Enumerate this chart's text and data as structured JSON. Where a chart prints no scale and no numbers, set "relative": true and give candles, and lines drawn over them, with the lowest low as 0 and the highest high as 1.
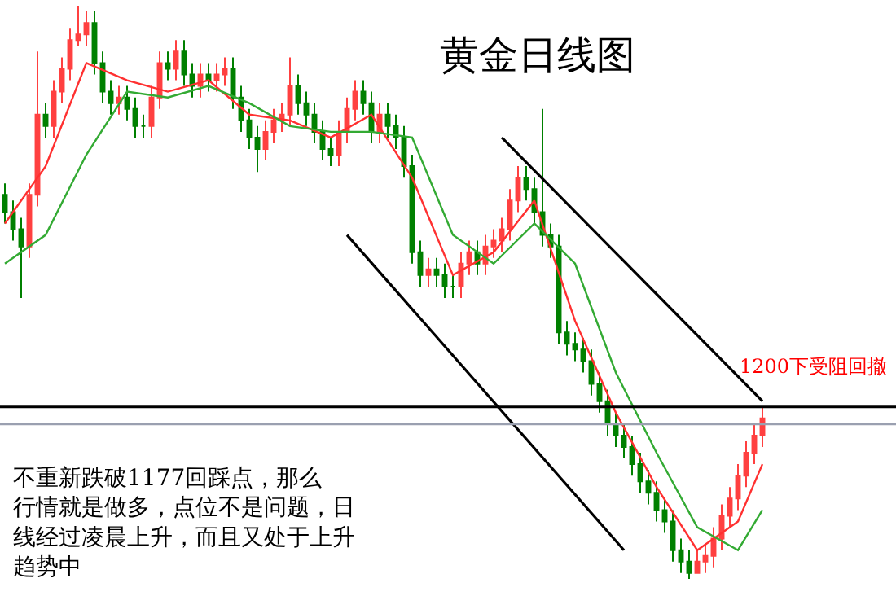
{
  "chart_data": {
    "type": "candlestick",
    "title": "黄金日线图",
    "relative": true,
    "categories": [
      null,
      null,
      null,
      null,
      null,
      null,
      null,
      null,
      null,
      null,
      null,
      null,
      null,
      null,
      null,
      null,
      null,
      null,
      null,
      null,
      null,
      null,
      null,
      null,
      null,
      null,
      null,
      null,
      null,
      null,
      null,
      null,
      null,
      null,
      null,
      null,
      null,
      null,
      null,
      null,
      null,
      null,
      null,
      null,
      null,
      null,
      null,
      null,
      null,
      null,
      null,
      null,
      null,
      null,
      null,
      null,
      null,
      null,
      null,
      null,
      null,
      null,
      null,
      null,
      null,
      null,
      null,
      null,
      null,
      null,
      null,
      null,
      null,
      null,
      null,
      null,
      null,
      null,
      null,
      null,
      null,
      null,
      null,
      null,
      null,
      null,
      null,
      null,
      null,
      null,
      null,
      null,
      null,
      null
    ],
    "ohlc": [
      [
        0.67,
        0.69,
        0.62,
        0.64
      ],
      [
        0.64,
        0.66,
        0.59,
        0.61
      ],
      [
        0.61,
        0.63,
        0.49,
        0.58
      ],
      [
        0.58,
        0.69,
        0.56,
        0.67
      ],
      [
        0.67,
        0.92,
        0.65,
        0.81
      ],
      [
        0.81,
        0.83,
        0.77,
        0.79
      ],
      [
        0.79,
        0.87,
        0.77,
        0.85
      ],
      [
        0.85,
        0.91,
        0.83,
        0.89
      ],
      [
        0.89,
        0.96,
        0.87,
        0.94
      ],
      [
        0.94,
        1.0,
        0.93,
        0.95
      ],
      [
        0.95,
        0.99,
        0.93,
        0.97
      ],
      [
        0.97,
        0.99,
        0.88,
        0.9
      ],
      [
        0.9,
        0.92,
        0.83,
        0.85
      ],
      [
        0.85,
        0.87,
        0.81,
        0.83
      ],
      [
        0.83,
        0.86,
        0.81,
        0.84
      ],
      [
        0.84,
        0.86,
        0.8,
        0.82
      ],
      [
        0.82,
        0.84,
        0.77,
        0.79
      ],
      [
        0.79,
        0.81,
        0.77,
        0.79
      ],
      [
        0.79,
        0.86,
        0.77,
        0.84
      ],
      [
        0.84,
        0.92,
        0.82,
        0.9
      ],
      [
        0.9,
        0.92,
        0.87,
        0.89
      ],
      [
        0.89,
        0.94,
        0.87,
        0.92
      ],
      [
        0.92,
        0.94,
        0.86,
        0.88
      ],
      [
        0.88,
        0.9,
        0.84,
        0.86
      ],
      [
        0.86,
        0.9,
        0.84,
        0.88
      ],
      [
        0.88,
        0.9,
        0.85,
        0.87
      ],
      [
        0.87,
        0.9,
        0.85,
        0.88
      ],
      [
        0.88,
        0.91,
        0.86,
        0.89
      ],
      [
        0.89,
        0.91,
        0.82,
        0.84
      ],
      [
        0.84,
        0.86,
        0.78,
        0.8
      ],
      [
        0.8,
        0.82,
        0.75,
        0.77
      ],
      [
        0.77,
        0.79,
        0.71,
        0.75
      ],
      [
        0.75,
        0.8,
        0.73,
        0.78
      ],
      [
        0.78,
        0.82,
        0.76,
        0.8
      ],
      [
        0.8,
        0.83,
        0.78,
        0.81
      ],
      [
        0.81,
        0.91,
        0.79,
        0.86
      ],
      [
        0.86,
        0.88,
        0.81,
        0.83
      ],
      [
        0.83,
        0.85,
        0.79,
        0.81
      ],
      [
        0.81,
        0.83,
        0.76,
        0.78
      ],
      [
        0.78,
        0.8,
        0.73,
        0.75
      ],
      [
        0.75,
        0.77,
        0.72,
        0.74
      ],
      [
        0.74,
        0.8,
        0.72,
        0.78
      ],
      [
        0.78,
        0.84,
        0.76,
        0.82
      ],
      [
        0.82,
        0.87,
        0.8,
        0.85
      ],
      [
        0.85,
        0.87,
        0.81,
        0.83
      ],
      [
        0.83,
        0.85,
        0.76,
        0.78
      ],
      [
        0.78,
        0.83,
        0.76,
        0.81
      ],
      [
        0.81,
        0.83,
        0.77,
        0.79
      ],
      [
        0.79,
        0.81,
        0.75,
        0.77
      ],
      [
        0.77,
        0.79,
        0.7,
        0.72
      ],
      [
        0.72,
        0.74,
        0.55,
        0.57
      ],
      [
        0.57,
        0.59,
        0.51,
        0.53
      ],
      [
        0.53,
        0.56,
        0.51,
        0.54
      ],
      [
        0.54,
        0.56,
        0.51,
        0.53
      ],
      [
        0.53,
        0.55,
        0.49,
        0.51
      ],
      [
        0.51,
        0.53,
        0.49,
        0.51
      ],
      [
        0.51,
        0.57,
        0.49,
        0.55
      ],
      [
        0.55,
        0.59,
        0.53,
        0.57
      ],
      [
        0.57,
        0.59,
        0.53,
        0.55
      ],
      [
        0.55,
        0.6,
        0.53,
        0.58
      ],
      [
        0.58,
        0.61,
        0.56,
        0.59
      ],
      [
        0.59,
        0.63,
        0.57,
        0.61
      ],
      [
        0.61,
        0.68,
        0.59,
        0.66
      ],
      [
        0.66,
        0.72,
        0.64,
        0.7
      ],
      [
        0.7,
        0.72,
        0.66,
        0.68
      ],
      [
        0.68,
        0.7,
        0.62,
        0.64
      ],
      [
        0.64,
        0.82,
        0.58,
        0.6
      ],
      [
        0.6,
        0.62,
        0.56,
        0.58
      ],
      [
        0.58,
        0.6,
        0.41,
        0.43
      ],
      [
        0.43,
        0.45,
        0.39,
        0.41
      ],
      [
        0.41,
        0.43,
        0.38,
        0.4
      ],
      [
        0.4,
        0.42,
        0.36,
        0.38
      ],
      [
        0.38,
        0.4,
        0.32,
        0.34
      ],
      [
        0.34,
        0.36,
        0.29,
        0.31
      ],
      [
        0.31,
        0.33,
        0.25,
        0.27
      ],
      [
        0.27,
        0.29,
        0.23,
        0.25
      ],
      [
        0.25,
        0.27,
        0.21,
        0.23
      ],
      [
        0.23,
        0.25,
        0.18,
        0.2
      ],
      [
        0.2,
        0.22,
        0.15,
        0.17
      ],
      [
        0.17,
        0.19,
        0.13,
        0.15
      ],
      [
        0.15,
        0.17,
        0.1,
        0.12
      ],
      [
        0.12,
        0.14,
        0.08,
        0.1
      ],
      [
        0.1,
        0.12,
        0.03,
        0.05
      ],
      [
        0.05,
        0.07,
        0.01,
        0.03
      ],
      [
        0.03,
        0.05,
        0.0,
        0.01
      ],
      [
        0.01,
        0.05,
        0.01,
        0.03
      ],
      [
        0.03,
        0.06,
        0.01,
        0.04
      ],
      [
        0.04,
        0.09,
        0.02,
        0.07
      ],
      [
        0.07,
        0.13,
        0.05,
        0.11
      ],
      [
        0.11,
        0.16,
        0.09,
        0.14
      ],
      [
        0.14,
        0.2,
        0.12,
        0.18
      ],
      [
        0.18,
        0.24,
        0.16,
        0.22
      ],
      [
        0.22,
        0.27,
        0.2,
        0.25
      ],
      [
        0.25,
        0.3,
        0.23,
        0.28
      ]
    ],
    "colors": [
      "#008000",
      "#008000",
      "#008000",
      "#ff4040",
      "#ff4040",
      "#008000",
      "#ff4040",
      "#ff4040",
      "#ff4040",
      "#ff4040",
      "#ff4040",
      "#008000",
      "#008000",
      "#008000",
      "#ff4040",
      "#008000",
      "#008000",
      "#008000",
      "#ff4040",
      "#ff4040",
      "#008000",
      "#ff4040",
      "#008000",
      "#008000",
      "#ff4040",
      "#008000",
      "#ff4040",
      "#ff4040",
      "#008000",
      "#008000",
      "#008000",
      "#008000",
      "#ff4040",
      "#ff4040",
      "#ff4040",
      "#ff4040",
      "#008000",
      "#008000",
      "#008000",
      "#008000",
      "#008000",
      "#ff4040",
      "#ff4040",
      "#ff4040",
      "#008000",
      "#008000",
      "#ff4040",
      "#008000",
      "#008000",
      "#008000",
      "#008000",
      "#008000",
      "#ff4040",
      "#008000",
      "#008000",
      "#008000",
      "#ff4040",
      "#ff4040",
      "#008000",
      "#ff4040",
      "#ff4040",
      "#ff4040",
      "#ff4040",
      "#ff4040",
      "#008000",
      "#008000",
      "#008000",
      "#008000",
      "#008000",
      "#008000",
      "#008000",
      "#008000",
      "#008000",
      "#008000",
      "#008000",
      "#008000",
      "#008000",
      "#008000",
      "#008000",
      "#008000",
      "#008000",
      "#008000",
      "#008000",
      "#008000",
      "#008000",
      "#ff4040",
      "#ff4040",
      "#ff4040",
      "#ff4040",
      "#ff4040",
      "#ff4040",
      "#ff4040",
      "#ff4040",
      "#ff4040"
    ],
    "series": [
      {
        "type": "line",
        "color": "#ff3030",
        "values": [
          0.62,
          null,
          null,
          null,
          null,
          0.72,
          null,
          null,
          null,
          null,
          0.9,
          null,
          null,
          null,
          null,
          0.87,
          null,
          null,
          null,
          null,
          0.85,
          null,
          null,
          null,
          null,
          0.87,
          null,
          null,
          null,
          null,
          0.81,
          null,
          null,
          null,
          null,
          0.8,
          null,
          null,
          null,
          null,
          0.77,
          null,
          null,
          null,
          null,
          0.81,
          null,
          null,
          null,
          null,
          0.7,
          null,
          null,
          null,
          null,
          0.53,
          null,
          null,
          null,
          null,
          0.57,
          null,
          null,
          null,
          null,
          0.66,
          null,
          null,
          null,
          null,
          0.45,
          null,
          null,
          null,
          null,
          0.29,
          null,
          null,
          null,
          null,
          0.16,
          null,
          null,
          null,
          null,
          0.05,
          null,
          null,
          null,
          null,
          0.1,
          null,
          null,
          0.2
        ]
      },
      {
        "type": "line",
        "color": "#33aa33",
        "values": [
          0.55,
          null,
          null,
          null,
          null,
          0.6,
          null,
          null,
          null,
          null,
          0.74,
          null,
          null,
          null,
          null,
          0.85,
          null,
          null,
          null,
          null,
          0.84,
          null,
          null,
          null,
          null,
          0.86,
          null,
          null,
          null,
          null,
          0.83,
          null,
          null,
          null,
          null,
          0.79,
          null,
          null,
          null,
          null,
          0.78,
          null,
          null,
          null,
          null,
          0.78,
          null,
          null,
          null,
          null,
          0.77,
          null,
          null,
          null,
          null,
          0.6,
          null,
          null,
          null,
          null,
          0.55,
          null,
          null,
          null,
          null,
          0.62,
          null,
          null,
          null,
          null,
          0.55,
          null,
          null,
          null,
          null,
          0.36,
          null,
          null,
          null,
          null,
          0.22,
          null,
          null,
          null,
          null,
          0.09,
          null,
          null,
          null,
          null,
          0.05,
          null,
          null,
          0.12
        ]
      },
      {
        "type": "line",
        "color": "#000000",
        "values": [
          null,
          null,
          null,
          null,
          null,
          null,
          null,
          null,
          null,
          null,
          null,
          null,
          null,
          null,
          null,
          null,
          null,
          null,
          null,
          null,
          null,
          null,
          null,
          null,
          null,
          null,
          null,
          null,
          null,
          null,
          null,
          null,
          null,
          null,
          null,
          null,
          null,
          null,
          null,
          null,
          null,
          null,
          0.6,
          null,
          null,
          null,
          null,
          null,
          null,
          null,
          null,
          null,
          null,
          null,
          null,
          null,
          null,
          null,
          null,
          null,
          null,
          null,
          null,
          null,
          null,
          null,
          null,
          null,
          null,
          null,
          null,
          null,
          null,
          null,
          null,
          null,
          0.05,
          null,
          null,
          null,
          null,
          null,
          null,
          null,
          null,
          null,
          null,
          null,
          null,
          null,
          null,
          null,
          null,
          null
        ]
      },
      {
        "type": "line",
        "color": "#000000",
        "values": [
          null,
          null,
          null,
          null,
          null,
          null,
          null,
          null,
          null,
          null,
          null,
          null,
          null,
          null,
          null,
          null,
          null,
          null,
          null,
          null,
          null,
          null,
          null,
          null,
          null,
          null,
          null,
          null,
          null,
          null,
          null,
          null,
          null,
          null,
          null,
          null,
          null,
          null,
          null,
          null,
          null,
          null,
          null,
          null,
          null,
          null,
          null,
          null,
          null,
          null,
          null,
          null,
          null,
          null,
          null,
          null,
          null,
          null,
          null,
          null,
          null,
          0.77,
          null,
          null,
          null,
          null,
          null,
          null,
          null,
          null,
          null,
          null,
          null,
          null,
          null,
          null,
          null,
          null,
          null,
          null,
          null,
          null,
          null,
          null,
          null,
          null,
          null,
          null,
          null,
          null,
          null,
          null,
          null,
          0.31
        ]
      }
    ],
    "ref_lines": [
      {
        "axis": "y",
        "value": 0.3,
        "color": "#000000"
      },
      {
        "axis": "y",
        "value": 0.27,
        "color": "#9aa0b0"
      }
    ],
    "annotations": [
      "1200下受阻回撤",
      "不重新跌破1177回踩点，那么行情就是做多，点位不是问题，日线经过凌晨上升，而且又处于上升趋势中"
    ]
  }
}
